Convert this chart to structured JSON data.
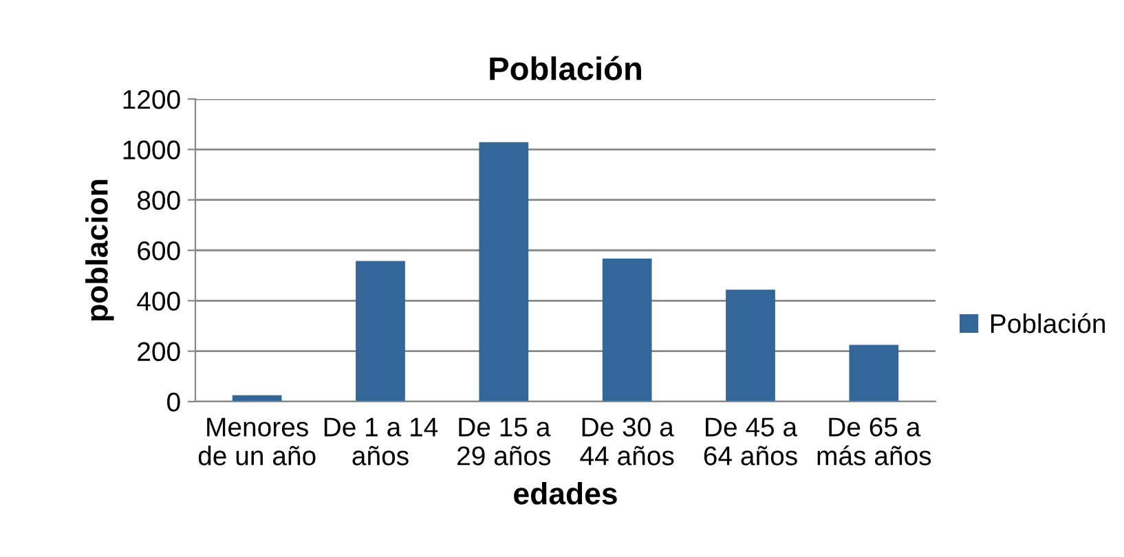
{
  "chart_data": {
    "type": "bar",
    "title": "Población",
    "xlabel": "edades",
    "ylabel": "poblacion",
    "categories": [
      "Menores\nde un año",
      "De 1 a 14\naños",
      "De 15 a\n29 años",
      "De 30 a\n44 años",
      "De 45 a\n64 años",
      "De 65 a\nmás años"
    ],
    "series": [
      {
        "name": "Población",
        "color": "#336699",
        "values": [
          25,
          558,
          1029,
          567,
          444,
          225
        ]
      }
    ],
    "ylim": [
      0,
      1200
    ],
    "yticks": [
      0,
      200,
      400,
      600,
      800,
      1000,
      1200
    ],
    "grid": "y",
    "legend": "right"
  }
}
